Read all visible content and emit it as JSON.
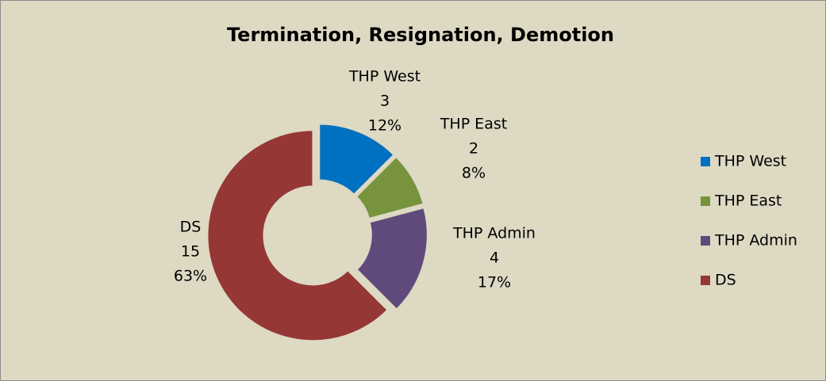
{
  "chart_data": {
    "type": "donut",
    "title": "Termination, Resignation, Demotion",
    "categories": [
      "THP West",
      "THP East",
      "THP Admin",
      "DS"
    ],
    "values": [
      3,
      2,
      4,
      15
    ],
    "percent_labels": [
      "12%",
      "8%",
      "17%",
      "63%"
    ],
    "colors": [
      "#0070c0",
      "#77933c",
      "#604a7b",
      "#953735"
    ],
    "legend": "right"
  }
}
